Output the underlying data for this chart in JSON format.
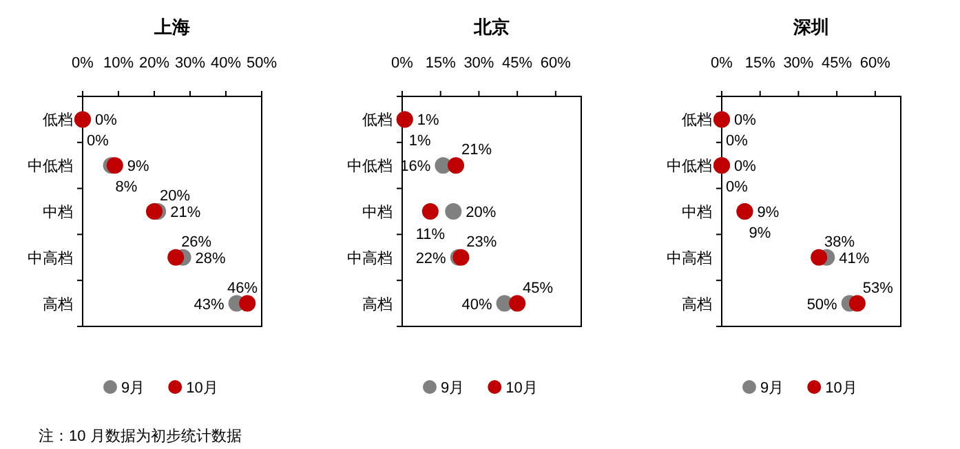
{
  "chart_data": [
    {
      "type": "scatter",
      "orientation": "horizontal",
      "title": "上海",
      "categories": [
        "低档",
        "中低档",
        "中档",
        "中高档",
        "高档"
      ],
      "xlim": [
        0,
        50
      ],
      "xticks": [
        {
          "value": 0,
          "label": "0%"
        },
        {
          "value": 10,
          "label": "10%"
        },
        {
          "value": 20,
          "label": "20%"
        },
        {
          "value": 30,
          "label": "30%"
        },
        {
          "value": 40,
          "label": "40%"
        },
        {
          "value": 50,
          "label": "50%"
        }
      ],
      "marker": "circle",
      "legend": "bottom",
      "series": [
        {
          "name": "9月",
          "color": "#808080",
          "values": [
            0,
            8,
            21,
            28,
            43
          ],
          "value_labels": [
            "0%",
            "8%",
            "21%",
            "28%",
            "43%"
          ]
        },
        {
          "name": "10月",
          "color": "#c00000",
          "values": [
            0,
            9,
            20,
            26,
            46
          ],
          "value_labels": [
            "0%",
            "9%",
            "20%",
            "26%",
            "46%"
          ]
        }
      ],
      "annotations": [
        "注：10 月数据为初步统计数据"
      ]
    },
    {
      "type": "scatter",
      "orientation": "horizontal",
      "title": "北京",
      "categories": [
        "低档",
        "中低档",
        "中档",
        "中高档",
        "高档"
      ],
      "xlim": [
        0,
        70
      ],
      "xticks": [
        {
          "value": 0,
          "label": "0%"
        },
        {
          "value": 15,
          "label": "15%"
        },
        {
          "value": 30,
          "label": "30%"
        },
        {
          "value": 45,
          "label": "45%"
        },
        {
          "value": 60,
          "label": "60%"
        }
      ],
      "marker": "circle",
      "legend": "bottom",
      "series": [
        {
          "name": "9月",
          "color": "#808080",
          "values": [
            1,
            16,
            20,
            22,
            40
          ],
          "value_labels": [
            "1%",
            "16%",
            "20%",
            "22%",
            "40%"
          ]
        },
        {
          "name": "10月",
          "color": "#c00000",
          "values": [
            1,
            21,
            11,
            23,
            45
          ],
          "value_labels": [
            "1%",
            "21%",
            "11%",
            "23%",
            "45%"
          ]
        }
      ]
    },
    {
      "type": "scatter",
      "orientation": "horizontal",
      "title": "深圳",
      "categories": [
        "低档",
        "中低档",
        "中档",
        "中高档",
        "高档"
      ],
      "xlim": [
        0,
        70
      ],
      "xticks": [
        {
          "value": 0,
          "label": "0%"
        },
        {
          "value": 15,
          "label": "15%"
        },
        {
          "value": 30,
          "label": "30%"
        },
        {
          "value": 45,
          "label": "45%"
        },
        {
          "value": 60,
          "label": "60%"
        }
      ],
      "marker": "circle",
      "legend": "bottom",
      "series": [
        {
          "name": "9月",
          "color": "#808080",
          "values": [
            0,
            0,
            9,
            41,
            50
          ],
          "value_labels": [
            "0%",
            "0%",
            "9%",
            "41%",
            "50%"
          ]
        },
        {
          "name": "10月",
          "color": "#c00000",
          "values": [
            0,
            0,
            9,
            38,
            53
          ],
          "value_labels": [
            "0%",
            "0%",
            "9%",
            "38%",
            "53%"
          ]
        }
      ]
    }
  ]
}
